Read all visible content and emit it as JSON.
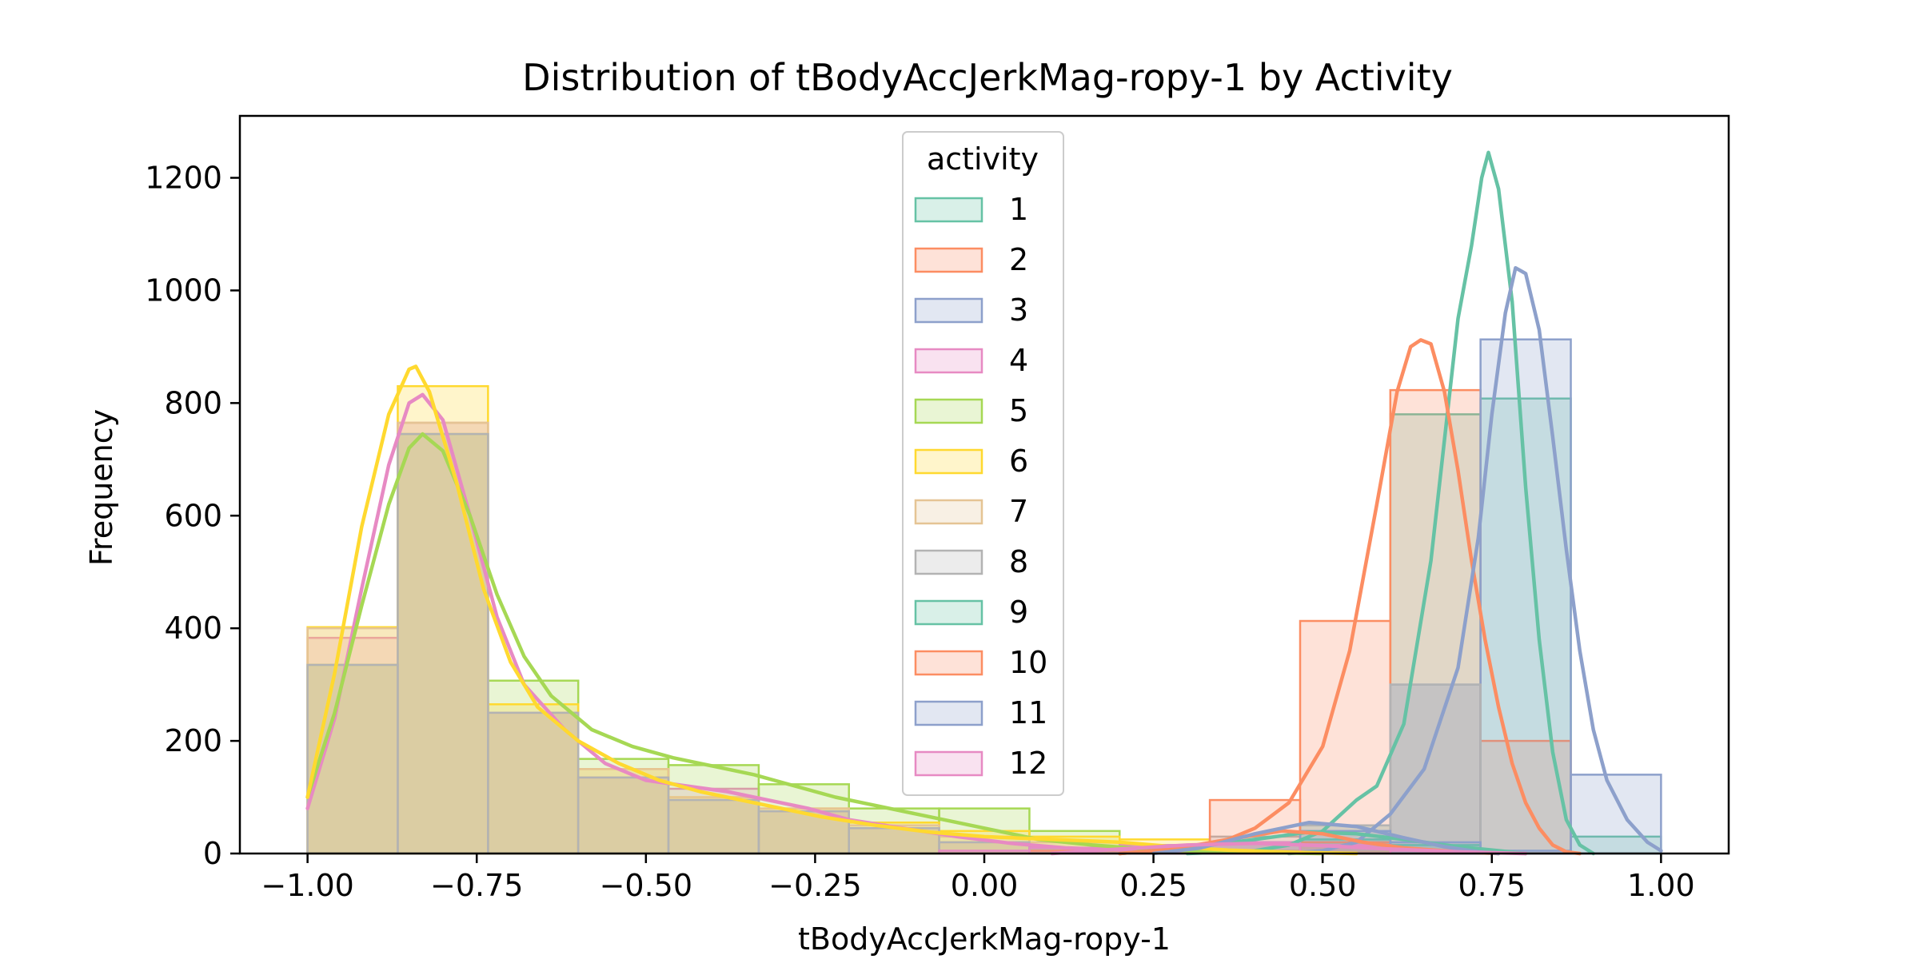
{
  "chart_data": {
    "type": "histogram",
    "title": "Distribution of tBodyAccJerkMag-ropy-1 by Activity",
    "xlabel": "tBodyAccJerkMag-ropy-1",
    "ylabel": "Frequency",
    "xlim": [
      -1.1,
      1.1
    ],
    "ylim": [
      0,
      1310
    ],
    "xticks": [
      -1.0,
      -0.75,
      -0.5,
      -0.25,
      0.0,
      0.25,
      0.5,
      0.75,
      1.0
    ],
    "xtick_labels": [
      "−1.00",
      "−0.75",
      "−0.50",
      "−0.25",
      "0.00",
      "0.25",
      "0.50",
      "0.75",
      "1.00"
    ],
    "yticks": [
      0,
      200,
      400,
      600,
      800,
      1000,
      1200
    ],
    "ytick_labels": [
      "0",
      "200",
      "400",
      "600",
      "800",
      "1000",
      "1200"
    ],
    "bin_edges": [
      -1.0,
      -0.8667,
      -0.7333,
      -0.6,
      -0.4667,
      -0.3333,
      -0.2,
      -0.0667,
      0.0667,
      0.2,
      0.3333,
      0.4667,
      0.6,
      0.7333,
      0.8667,
      1.0
    ],
    "legend_title": "activity",
    "legend_position": "top-center",
    "grid": false,
    "kde": true,
    "series": [
      {
        "name": "1",
        "color": "#66c2a5",
        "counts": [
          0,
          0,
          0,
          0,
          0,
          0,
          0,
          0,
          0,
          0,
          0,
          50,
          780,
          808,
          30
        ],
        "kde": [
          [
            0.3,
            0
          ],
          [
            0.4,
            5
          ],
          [
            0.45,
            15
          ],
          [
            0.5,
            40
          ],
          [
            0.55,
            95
          ],
          [
            0.58,
            120
          ],
          [
            0.62,
            230
          ],
          [
            0.66,
            520
          ],
          [
            0.7,
            950
          ],
          [
            0.72,
            1080
          ],
          [
            0.735,
            1200
          ],
          [
            0.745,
            1245
          ],
          [
            0.76,
            1180
          ],
          [
            0.78,
            980
          ],
          [
            0.8,
            650
          ],
          [
            0.82,
            380
          ],
          [
            0.84,
            180
          ],
          [
            0.86,
            60
          ],
          [
            0.88,
            15
          ],
          [
            0.9,
            0
          ]
        ]
      },
      {
        "name": "2",
        "color": "#fc8d62",
        "counts": [
          0,
          0,
          0,
          0,
          0,
          0,
          0,
          0,
          0,
          0,
          0,
          413,
          823,
          200,
          0
        ],
        "kde": [
          [
            0.3,
            5
          ],
          [
            0.35,
            20
          ],
          [
            0.4,
            45
          ],
          [
            0.45,
            90
          ],
          [
            0.5,
            190
          ],
          [
            0.54,
            360
          ],
          [
            0.58,
            620
          ],
          [
            0.61,
            820
          ],
          [
            0.63,
            900
          ],
          [
            0.645,
            912
          ],
          [
            0.66,
            905
          ],
          [
            0.68,
            820
          ],
          [
            0.7,
            680
          ],
          [
            0.72,
            520
          ],
          [
            0.74,
            380
          ],
          [
            0.76,
            260
          ],
          [
            0.78,
            160
          ],
          [
            0.8,
            90
          ],
          [
            0.82,
            45
          ],
          [
            0.84,
            15
          ],
          [
            0.86,
            3
          ],
          [
            0.88,
            0
          ]
        ]
      },
      {
        "name": "3",
        "color": "#8da0cb",
        "counts": [
          0,
          0,
          0,
          0,
          0,
          0,
          0,
          0,
          0,
          0,
          0,
          20,
          300,
          913,
          140
        ],
        "kde": [
          [
            0.45,
            0
          ],
          [
            0.5,
            5
          ],
          [
            0.55,
            20
          ],
          [
            0.6,
            70
          ],
          [
            0.65,
            150
          ],
          [
            0.7,
            330
          ],
          [
            0.73,
            560
          ],
          [
            0.75,
            780
          ],
          [
            0.77,
            960
          ],
          [
            0.785,
            1040
          ],
          [
            0.8,
            1030
          ],
          [
            0.82,
            930
          ],
          [
            0.84,
            740
          ],
          [
            0.86,
            540
          ],
          [
            0.88,
            360
          ],
          [
            0.9,
            220
          ],
          [
            0.92,
            130
          ],
          [
            0.95,
            60
          ],
          [
            0.98,
            20
          ],
          [
            1.0,
            5
          ]
        ]
      },
      {
        "name": "4",
        "color": "#e78ac3",
        "counts": [
          383,
          765,
          250,
          135,
          115,
          75,
          45,
          20,
          10,
          5,
          3,
          2,
          0,
          0,
          0
        ],
        "kde": [
          [
            -1.0,
            80
          ],
          [
            -0.96,
            240
          ],
          [
            -0.92,
            470
          ],
          [
            -0.88,
            690
          ],
          [
            -0.85,
            800
          ],
          [
            -0.83,
            815
          ],
          [
            -0.8,
            770
          ],
          [
            -0.76,
            600
          ],
          [
            -0.72,
            420
          ],
          [
            -0.68,
            300
          ],
          [
            -0.62,
            220
          ],
          [
            -0.56,
            160
          ],
          [
            -0.5,
            130
          ],
          [
            -0.44,
            120
          ],
          [
            -0.38,
            110
          ],
          [
            -0.32,
            95
          ],
          [
            -0.26,
            80
          ],
          [
            -0.2,
            60
          ],
          [
            -0.12,
            45
          ],
          [
            -0.04,
            30
          ],
          [
            0.04,
            18
          ],
          [
            0.12,
            10
          ],
          [
            0.22,
            6
          ],
          [
            0.3,
            3
          ],
          [
            0.4,
            1
          ]
        ]
      },
      {
        "name": "5",
        "color": "#a6d854",
        "counts": [
          335,
          745,
          307,
          168,
          157,
          123,
          80,
          80,
          40,
          10,
          5,
          3,
          0,
          0,
          0
        ],
        "kde": [
          [
            -1.0,
            100
          ],
          [
            -0.96,
            250
          ],
          [
            -0.92,
            440
          ],
          [
            -0.88,
            620
          ],
          [
            -0.85,
            720
          ],
          [
            -0.83,
            745
          ],
          [
            -0.8,
            715
          ],
          [
            -0.76,
            600
          ],
          [
            -0.72,
            460
          ],
          [
            -0.68,
            350
          ],
          [
            -0.64,
            280
          ],
          [
            -0.58,
            220
          ],
          [
            -0.52,
            190
          ],
          [
            -0.46,
            170
          ],
          [
            -0.4,
            155
          ],
          [
            -0.34,
            140
          ],
          [
            -0.28,
            120
          ],
          [
            -0.22,
            100
          ],
          [
            -0.16,
            85
          ],
          [
            -0.1,
            70
          ],
          [
            -0.04,
            55
          ],
          [
            0.02,
            40
          ],
          [
            0.08,
            25
          ],
          [
            0.16,
            15
          ],
          [
            0.24,
            8
          ],
          [
            0.32,
            4
          ],
          [
            0.4,
            2
          ],
          [
            0.5,
            0
          ]
        ]
      },
      {
        "name": "6",
        "color": "#ffd92f",
        "counts": [
          402,
          830,
          265,
          150,
          100,
          80,
          55,
          40,
          30,
          25,
          5,
          2,
          0,
          0,
          0
        ],
        "kde": [
          [
            -1.0,
            100
          ],
          [
            -0.96,
            320
          ],
          [
            -0.92,
            580
          ],
          [
            -0.88,
            780
          ],
          [
            -0.85,
            860
          ],
          [
            -0.84,
            865
          ],
          [
            -0.82,
            820
          ],
          [
            -0.78,
            660
          ],
          [
            -0.74,
            470
          ],
          [
            -0.7,
            340
          ],
          [
            -0.66,
            260
          ],
          [
            -0.6,
            200
          ],
          [
            -0.54,
            160
          ],
          [
            -0.48,
            130
          ],
          [
            -0.42,
            110
          ],
          [
            -0.36,
            95
          ],
          [
            -0.3,
            80
          ],
          [
            -0.24,
            65
          ],
          [
            -0.16,
            50
          ],
          [
            -0.08,
            38
          ],
          [
            0.0,
            30
          ],
          [
            0.1,
            25
          ],
          [
            0.2,
            20
          ],
          [
            0.28,
            12
          ],
          [
            0.36,
            6
          ],
          [
            0.46,
            2
          ],
          [
            0.55,
            0
          ]
        ]
      },
      {
        "name": "7",
        "color": "#e5c494",
        "counts": [
          400,
          765,
          250,
          150,
          100,
          80,
          50,
          30,
          20,
          10,
          20,
          10,
          0,
          0,
          0
        ],
        "kde": null
      },
      {
        "name": "8",
        "color": "#b3b3b3",
        "counts": [
          335,
          745,
          250,
          135,
          95,
          75,
          45,
          20,
          10,
          5,
          30,
          50,
          300,
          0,
          0
        ],
        "kde": null
      },
      {
        "name": "9",
        "color": "#66c2a5",
        "counts": [
          0,
          0,
          0,
          0,
          0,
          0,
          0,
          0,
          10,
          15,
          20,
          25,
          15,
          0,
          0
        ],
        "kde": [
          [
            0.2,
            0
          ],
          [
            0.3,
            10
          ],
          [
            0.4,
            25
          ],
          [
            0.48,
            38
          ],
          [
            0.55,
            35
          ],
          [
            0.62,
            25
          ],
          [
            0.7,
            12
          ],
          [
            0.76,
            5
          ],
          [
            0.8,
            0
          ]
        ]
      },
      {
        "name": "10",
        "color": "#fc8d62",
        "counts": [
          0,
          0,
          0,
          0,
          0,
          0,
          0,
          0,
          5,
          10,
          95,
          20,
          0,
          0,
          0
        ],
        "kde": [
          [
            0.2,
            0
          ],
          [
            0.28,
            8
          ],
          [
            0.36,
            25
          ],
          [
            0.44,
            40
          ],
          [
            0.5,
            35
          ],
          [
            0.56,
            20
          ],
          [
            0.62,
            10
          ],
          [
            0.7,
            3
          ],
          [
            0.76,
            0
          ]
        ]
      },
      {
        "name": "11",
        "color": "#8da0cb",
        "counts": [
          0,
          0,
          0,
          0,
          0,
          0,
          0,
          0,
          0,
          5,
          20,
          40,
          20,
          5,
          0
        ],
        "kde": [
          [
            0.25,
            0
          ],
          [
            0.32,
            10
          ],
          [
            0.4,
            35
          ],
          [
            0.48,
            55
          ],
          [
            0.55,
            48
          ],
          [
            0.62,
            28
          ],
          [
            0.68,
            12
          ],
          [
            0.73,
            3
          ],
          [
            0.76,
            0
          ]
        ]
      },
      {
        "name": "12",
        "color": "#e78ac3",
        "counts": [
          0,
          0,
          0,
          0,
          0,
          0,
          0,
          5,
          10,
          15,
          20,
          15,
          5,
          0,
          0
        ],
        "kde": [
          [
            0.1,
            0
          ],
          [
            0.2,
            8
          ],
          [
            0.3,
            15
          ],
          [
            0.4,
            18
          ],
          [
            0.5,
            14
          ],
          [
            0.6,
            8
          ],
          [
            0.7,
            3
          ],
          [
            0.8,
            0
          ]
        ]
      }
    ]
  }
}
